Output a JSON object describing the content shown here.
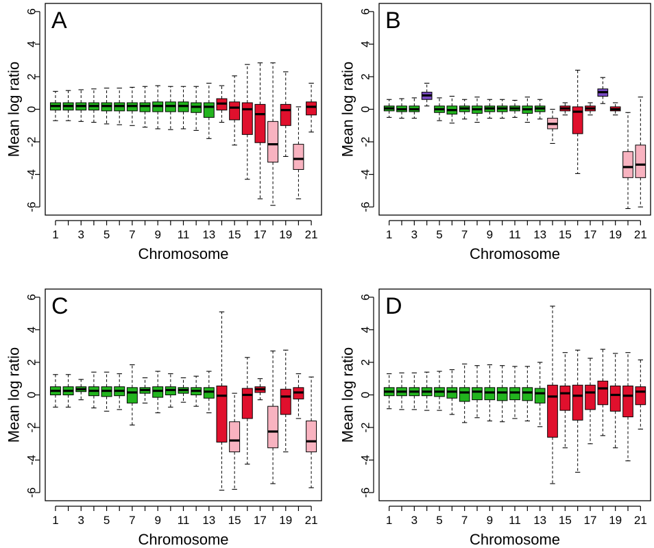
{
  "colors": {
    "green": "#22b41e",
    "red": "#e0102d",
    "pink": "#f8b3c0",
    "purple": "#7a4cc4"
  },
  "chart_data": [
    {
      "type": "boxplot",
      "panel_label": "A",
      "xlabel": "Chromosome",
      "ylabel": "Mean log ratio",
      "ylim": [
        -6.5,
        6.5
      ],
      "y_ticks": [
        6,
        4,
        2,
        0,
        -2,
        -4,
        -6
      ],
      "x_tick_labels": [
        "1",
        "3",
        "5",
        "7",
        "9",
        "11",
        "13",
        "15",
        "17",
        "19",
        "21"
      ],
      "grid": false,
      "boxes": [
        {
          "chr": 1,
          "color": "green",
          "whisker_low": -0.7,
          "q1": -0.05,
          "median": 0.2,
          "q3": 0.4,
          "whisker_high": 1.1
        },
        {
          "chr": 2,
          "color": "green",
          "whisker_low": -0.7,
          "q1": -0.05,
          "median": 0.2,
          "q3": 0.4,
          "whisker_high": 1.15
        },
        {
          "chr": 3,
          "color": "green",
          "whisker_low": -0.75,
          "q1": -0.05,
          "median": 0.2,
          "q3": 0.4,
          "whisker_high": 1.2
        },
        {
          "chr": 4,
          "color": "green",
          "whisker_low": -0.8,
          "q1": -0.05,
          "median": 0.2,
          "q3": 0.4,
          "whisker_high": 1.25
        },
        {
          "chr": 5,
          "color": "green",
          "whisker_low": -0.9,
          "q1": -0.1,
          "median": 0.2,
          "q3": 0.4,
          "whisker_high": 1.3
        },
        {
          "chr": 6,
          "color": "green",
          "whisker_low": -0.95,
          "q1": -0.1,
          "median": 0.2,
          "q3": 0.4,
          "whisker_high": 1.3
        },
        {
          "chr": 7,
          "color": "green",
          "whisker_low": -1.0,
          "q1": -0.1,
          "median": 0.2,
          "q3": 0.4,
          "whisker_high": 1.35
        },
        {
          "chr": 8,
          "color": "green",
          "whisker_low": -1.1,
          "q1": -0.15,
          "median": 0.2,
          "q3": 0.4,
          "whisker_high": 1.4
        },
        {
          "chr": 9,
          "color": "green",
          "whisker_low": -1.2,
          "q1": -0.15,
          "median": 0.2,
          "q3": 0.45,
          "whisker_high": 1.45
        },
        {
          "chr": 10,
          "color": "green",
          "whisker_low": -1.25,
          "q1": -0.15,
          "median": 0.2,
          "q3": 0.45,
          "whisker_high": 1.4
        },
        {
          "chr": 11,
          "color": "green",
          "whisker_low": -1.2,
          "q1": -0.15,
          "median": 0.2,
          "q3": 0.45,
          "whisker_high": 1.4
        },
        {
          "chr": 12,
          "color": "green",
          "whisker_low": -1.3,
          "q1": -0.2,
          "median": 0.15,
          "q3": 0.4,
          "whisker_high": 1.4
        },
        {
          "chr": 13,
          "color": "green",
          "whisker_low": -1.8,
          "q1": -0.5,
          "median": 0.15,
          "q3": 0.4,
          "whisker_high": 1.6
        },
        {
          "chr": 14,
          "color": "red",
          "whisker_low": -0.8,
          "q1": -0.05,
          "median": 0.35,
          "q3": 0.65,
          "whisker_high": 1.45
        },
        {
          "chr": 15,
          "color": "red",
          "whisker_low": -2.2,
          "q1": -0.65,
          "median": 0.1,
          "q3": 0.45,
          "whisker_high": 2.05
        },
        {
          "chr": 16,
          "color": "red",
          "whisker_low": -4.3,
          "q1": -1.55,
          "median": 0.0,
          "q3": 0.4,
          "whisker_high": 2.75
        },
        {
          "chr": 17,
          "color": "red",
          "whisker_low": -5.5,
          "q1": -2.05,
          "median": -0.3,
          "q3": 0.3,
          "whisker_high": 2.85
        },
        {
          "chr": 18,
          "color": "pink",
          "whisker_low": -5.9,
          "q1": -3.25,
          "median": -2.15,
          "q3": -0.75,
          "whisker_high": 2.85
        },
        {
          "chr": 19,
          "color": "red",
          "whisker_low": -2.9,
          "q1": -1.0,
          "median": -0.05,
          "q3": 0.3,
          "whisker_high": 2.3
        },
        {
          "chr": 20,
          "color": "pink",
          "whisker_low": -5.5,
          "q1": -3.7,
          "median": -3.05,
          "q3": -2.15,
          "whisker_high": 0.15
        },
        {
          "chr": 21,
          "color": "red",
          "whisker_low": -1.4,
          "q1": -0.35,
          "median": 0.15,
          "q3": 0.45,
          "whisker_high": 1.6
        }
      ]
    },
    {
      "type": "boxplot",
      "panel_label": "B",
      "xlabel": "Chromosome",
      "ylabel": "Mean log ratio",
      "ylim": [
        -6.5,
        6.5
      ],
      "y_ticks": [
        6,
        4,
        2,
        0,
        -2,
        -4,
        -6
      ],
      "x_tick_labels": [
        "1",
        "3",
        "5",
        "7",
        "9",
        "11",
        "13",
        "15",
        "17",
        "19",
        "21"
      ],
      "grid": false,
      "boxes": [
        {
          "chr": 1,
          "color": "green",
          "whisker_low": -0.5,
          "q1": -0.1,
          "median": 0.05,
          "q3": 0.2,
          "whisker_high": 0.6
        },
        {
          "chr": 2,
          "color": "green",
          "whisker_low": -0.55,
          "q1": -0.15,
          "median": 0.0,
          "q3": 0.2,
          "whisker_high": 0.65
        },
        {
          "chr": 3,
          "color": "green",
          "whisker_low": -0.55,
          "q1": -0.15,
          "median": 0.0,
          "q3": 0.2,
          "whisker_high": 0.7
        },
        {
          "chr": 4,
          "color": "purple",
          "whisker_low": 0.2,
          "q1": 0.6,
          "median": 0.85,
          "q3": 1.05,
          "whisker_high": 1.6
        },
        {
          "chr": 5,
          "color": "green",
          "whisker_low": -0.7,
          "q1": -0.2,
          "median": 0.0,
          "q3": 0.2,
          "whisker_high": 0.7
        },
        {
          "chr": 6,
          "color": "green",
          "whisker_low": -0.85,
          "q1": -0.3,
          "median": -0.05,
          "q3": 0.2,
          "whisker_high": 0.8
        },
        {
          "chr": 7,
          "color": "green",
          "whisker_low": -0.6,
          "q1": -0.15,
          "median": 0.05,
          "q3": 0.2,
          "whisker_high": 0.6
        },
        {
          "chr": 8,
          "color": "green",
          "whisker_low": -0.8,
          "q1": -0.25,
          "median": 0.0,
          "q3": 0.2,
          "whisker_high": 0.75
        },
        {
          "chr": 9,
          "color": "green",
          "whisker_low": -0.55,
          "q1": -0.15,
          "median": 0.05,
          "q3": 0.2,
          "whisker_high": 0.6
        },
        {
          "chr": 10,
          "color": "green",
          "whisker_low": -0.55,
          "q1": -0.15,
          "median": 0.05,
          "q3": 0.2,
          "whisker_high": 0.6
        },
        {
          "chr": 11,
          "color": "green",
          "whisker_low": -0.5,
          "q1": -0.1,
          "median": 0.05,
          "q3": 0.2,
          "whisker_high": 0.55
        },
        {
          "chr": 12,
          "color": "green",
          "whisker_low": -0.8,
          "q1": -0.25,
          "median": 0.0,
          "q3": 0.2,
          "whisker_high": 0.75
        },
        {
          "chr": 13,
          "color": "green",
          "whisker_low": -0.6,
          "q1": -0.15,
          "median": 0.05,
          "q3": 0.2,
          "whisker_high": 0.6
        },
        {
          "chr": 14,
          "color": "pink",
          "whisker_low": -2.1,
          "q1": -1.2,
          "median": -0.9,
          "q3": -0.55,
          "whisker_high": 0.0
        },
        {
          "chr": 15,
          "color": "red",
          "whisker_low": -0.35,
          "q1": -0.1,
          "median": 0.05,
          "q3": 0.2,
          "whisker_high": 0.4
        },
        {
          "chr": 16,
          "color": "red",
          "whisker_low": -3.95,
          "q1": -1.5,
          "median": -0.15,
          "q3": 0.15,
          "whisker_high": 2.4
        },
        {
          "chr": 17,
          "color": "red",
          "whisker_low": -0.35,
          "q1": -0.1,
          "median": 0.05,
          "q3": 0.2,
          "whisker_high": 0.4
        },
        {
          "chr": 18,
          "color": "purple",
          "whisker_low": 0.35,
          "q1": 0.8,
          "median": 1.05,
          "q3": 1.25,
          "whisker_high": 1.95
        },
        {
          "chr": 19,
          "color": "red",
          "whisker_low": -0.35,
          "q1": -0.1,
          "median": 0.0,
          "q3": 0.15,
          "whisker_high": 0.4
        },
        {
          "chr": 20,
          "color": "pink",
          "whisker_low": -6.1,
          "q1": -4.2,
          "median": -3.55,
          "q3": -2.6,
          "whisker_high": -0.2
        },
        {
          "chr": 21,
          "color": "pink",
          "whisker_low": -6.0,
          "q1": -4.2,
          "median": -3.4,
          "q3": -2.2,
          "whisker_high": 0.75
        }
      ]
    },
    {
      "type": "boxplot",
      "panel_label": "C",
      "xlabel": "Chromosome",
      "ylabel": "Mean log ratio",
      "ylim": [
        -6.5,
        6.5
      ],
      "y_ticks": [
        6,
        4,
        2,
        0,
        -2,
        -4,
        -6
      ],
      "x_tick_labels": [
        "1",
        "3",
        "5",
        "7",
        "9",
        "11",
        "13",
        "15",
        "17",
        "19",
        "21"
      ],
      "grid": false,
      "boxes": [
        {
          "chr": 1,
          "color": "green",
          "whisker_low": -0.75,
          "q1": 0.0,
          "median": 0.25,
          "q3": 0.5,
          "whisker_high": 1.25
        },
        {
          "chr": 2,
          "color": "green",
          "whisker_low": -0.75,
          "q1": 0.0,
          "median": 0.25,
          "q3": 0.5,
          "whisker_high": 1.25
        },
        {
          "chr": 3,
          "color": "green",
          "whisker_low": -0.3,
          "q1": 0.2,
          "median": 0.35,
          "q3": 0.5,
          "whisker_high": 0.95
        },
        {
          "chr": 4,
          "color": "green",
          "whisker_low": -0.8,
          "q1": -0.05,
          "median": 0.25,
          "q3": 0.5,
          "whisker_high": 1.4
        },
        {
          "chr": 5,
          "color": "green",
          "whisker_low": -1.0,
          "q1": -0.1,
          "median": 0.25,
          "q3": 0.5,
          "whisker_high": 1.4
        },
        {
          "chr": 6,
          "color": "green",
          "whisker_low": -0.9,
          "q1": -0.05,
          "median": 0.25,
          "q3": 0.5,
          "whisker_high": 1.3
        },
        {
          "chr": 7,
          "color": "green",
          "whisker_low": -1.85,
          "q1": -0.5,
          "median": 0.15,
          "q3": 0.45,
          "whisker_high": 1.85
        },
        {
          "chr": 8,
          "color": "green",
          "whisker_low": -0.5,
          "q1": 0.1,
          "median": 0.3,
          "q3": 0.45,
          "whisker_high": 1.05
        },
        {
          "chr": 9,
          "color": "green",
          "whisker_low": -1.1,
          "q1": -0.15,
          "median": 0.25,
          "q3": 0.5,
          "whisker_high": 1.45
        },
        {
          "chr": 10,
          "color": "green",
          "whisker_low": -0.75,
          "q1": 0.0,
          "median": 0.3,
          "q3": 0.5,
          "whisker_high": 1.3
        },
        {
          "chr": 11,
          "color": "green",
          "whisker_low": -0.45,
          "q1": 0.1,
          "median": 0.3,
          "q3": 0.45,
          "whisker_high": 1.05
        },
        {
          "chr": 12,
          "color": "green",
          "whisker_low": -0.7,
          "q1": 0.0,
          "median": 0.25,
          "q3": 0.45,
          "whisker_high": 1.15
        },
        {
          "chr": 13,
          "color": "green",
          "whisker_low": -1.1,
          "q1": -0.2,
          "median": 0.2,
          "q3": 0.45,
          "whisker_high": 1.45
        },
        {
          "chr": 14,
          "color": "red",
          "whisker_low": -5.85,
          "q1": -2.9,
          "median": -0.05,
          "q3": 0.55,
          "whisker_high": 5.1
        },
        {
          "chr": 15,
          "color": "pink",
          "whisker_low": -5.8,
          "q1": -3.5,
          "median": -2.8,
          "q3": -1.65,
          "whisker_high": 0.1
        },
        {
          "chr": 16,
          "color": "red",
          "whisker_low": -4.25,
          "q1": -1.45,
          "median": 0.0,
          "q3": 0.4,
          "whisker_high": 2.3
        },
        {
          "chr": 17,
          "color": "red",
          "whisker_low": -0.3,
          "q1": 0.15,
          "median": 0.35,
          "q3": 0.5,
          "whisker_high": 1.0
        },
        {
          "chr": 18,
          "color": "pink",
          "whisker_low": -5.45,
          "q1": -3.25,
          "median": -2.25,
          "q3": -0.7,
          "whisker_high": 2.7
        },
        {
          "chr": 19,
          "color": "red",
          "whisker_low": -3.5,
          "q1": -1.2,
          "median": -0.1,
          "q3": 0.35,
          "whisker_high": 2.75
        },
        {
          "chr": 20,
          "color": "red",
          "whisker_low": -1.45,
          "q1": -0.25,
          "median": 0.15,
          "q3": 0.45,
          "whisker_high": 1.3
        },
        {
          "chr": 21,
          "color": "pink",
          "whisker_low": -5.7,
          "q1": -3.5,
          "median": -2.85,
          "q3": -1.6,
          "whisker_high": 1.1
        }
      ]
    },
    {
      "type": "boxplot",
      "panel_label": "D",
      "xlabel": "Chromosome",
      "ylabel": "Mean log ratio",
      "ylim": [
        -6.5,
        6.5
      ],
      "y_ticks": [
        6,
        4,
        2,
        0,
        -2,
        -4,
        -6
      ],
      "x_tick_labels": [
        "1",
        "3",
        "5",
        "7",
        "9",
        "11",
        "13",
        "15",
        "17",
        "19",
        "21"
      ],
      "grid": false,
      "boxes": [
        {
          "chr": 1,
          "color": "green",
          "whisker_low": -0.85,
          "q1": -0.05,
          "median": 0.2,
          "q3": 0.45,
          "whisker_high": 1.3
        },
        {
          "chr": 2,
          "color": "green",
          "whisker_low": -0.9,
          "q1": -0.05,
          "median": 0.2,
          "q3": 0.45,
          "whisker_high": 1.35
        },
        {
          "chr": 3,
          "color": "green",
          "whisker_low": -0.9,
          "q1": -0.05,
          "median": 0.2,
          "q3": 0.45,
          "whisker_high": 1.35
        },
        {
          "chr": 4,
          "color": "green",
          "whisker_low": -0.95,
          "q1": -0.05,
          "median": 0.2,
          "q3": 0.45,
          "whisker_high": 1.4
        },
        {
          "chr": 5,
          "color": "green",
          "whisker_low": -0.95,
          "q1": -0.1,
          "median": 0.2,
          "q3": 0.45,
          "whisker_high": 1.45
        },
        {
          "chr": 6,
          "color": "green",
          "whisker_low": -1.2,
          "q1": -0.2,
          "median": 0.2,
          "q3": 0.45,
          "whisker_high": 1.55
        },
        {
          "chr": 7,
          "color": "green",
          "whisker_low": -1.7,
          "q1": -0.4,
          "median": 0.15,
          "q3": 0.45,
          "whisker_high": 1.9
        },
        {
          "chr": 8,
          "color": "green",
          "whisker_low": -1.4,
          "q1": -0.3,
          "median": 0.2,
          "q3": 0.45,
          "whisker_high": 1.8
        },
        {
          "chr": 9,
          "color": "green",
          "whisker_low": -1.6,
          "q1": -0.3,
          "median": 0.15,
          "q3": 0.45,
          "whisker_high": 1.85
        },
        {
          "chr": 10,
          "color": "green",
          "whisker_low": -1.65,
          "q1": -0.35,
          "median": 0.15,
          "q3": 0.45,
          "whisker_high": 1.8
        },
        {
          "chr": 11,
          "color": "green",
          "whisker_low": -1.45,
          "q1": -0.3,
          "median": 0.15,
          "q3": 0.45,
          "whisker_high": 1.75
        },
        {
          "chr": 12,
          "color": "green",
          "whisker_low": -1.6,
          "q1": -0.35,
          "median": 0.15,
          "q3": 0.45,
          "whisker_high": 1.75
        },
        {
          "chr": 13,
          "color": "green",
          "whisker_low": -1.95,
          "q1": -0.5,
          "median": 0.1,
          "q3": 0.4,
          "whisker_high": 2.0
        },
        {
          "chr": 14,
          "color": "red",
          "whisker_low": -5.45,
          "q1": -2.6,
          "median": -0.1,
          "q3": 0.6,
          "whisker_high": 5.45
        },
        {
          "chr": 15,
          "color": "red",
          "whisker_low": -3.25,
          "q1": -0.95,
          "median": 0.1,
          "q3": 0.55,
          "whisker_high": 2.6
        },
        {
          "chr": 16,
          "color": "red",
          "whisker_low": -4.75,
          "q1": -1.55,
          "median": -0.05,
          "q3": 0.6,
          "whisker_high": 2.75
        },
        {
          "chr": 17,
          "color": "red",
          "whisker_low": -3.0,
          "q1": -0.9,
          "median": 0.15,
          "q3": 0.6,
          "whisker_high": 2.25
        },
        {
          "chr": 18,
          "color": "red",
          "whisker_low": -2.5,
          "q1": -0.6,
          "median": 0.4,
          "q3": 0.85,
          "whisker_high": 2.8
        },
        {
          "chr": 19,
          "color": "red",
          "whisker_low": -3.25,
          "q1": -1.0,
          "median": 0.0,
          "q3": 0.55,
          "whisker_high": 2.55
        },
        {
          "chr": 20,
          "color": "red",
          "whisker_low": -4.05,
          "q1": -1.35,
          "median": -0.05,
          "q3": 0.55,
          "whisker_high": 2.6
        },
        {
          "chr": 21,
          "color": "red",
          "whisker_low": -2.1,
          "q1": -0.6,
          "median": 0.2,
          "q3": 0.5,
          "whisker_high": 2.15
        }
      ]
    }
  ]
}
